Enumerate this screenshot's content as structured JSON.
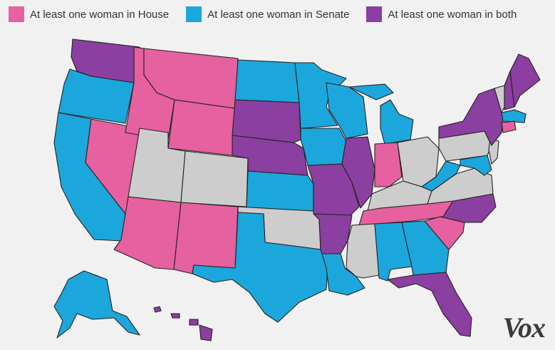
{
  "legend": [
    {
      "label": "At least one woman in House",
      "color": "#e5619f"
    },
    {
      "label": "At least one woman in Senate",
      "color": "#1ba7dc"
    },
    {
      "label": "At least one woman in both",
      "color": "#8b3fa0"
    }
  ],
  "colors": {
    "house": "#e5619f",
    "senate": "#1ba7dc",
    "both": "#8b3fa0",
    "none": "#cdcdcd",
    "border": "#222222",
    "background": "#f1f1f1"
  },
  "map": {
    "description_key": "us-states",
    "states": [
      {
        "id": "WA",
        "category": "both"
      },
      {
        "id": "OR",
        "category": "senate"
      },
      {
        "id": "CA",
        "category": "senate"
      },
      {
        "id": "NV",
        "category": "house"
      },
      {
        "id": "ID",
        "category": "house"
      },
      {
        "id": "MT",
        "category": "house"
      },
      {
        "id": "WY",
        "category": "house"
      },
      {
        "id": "UT",
        "category": "none"
      },
      {
        "id": "CO",
        "category": "none"
      },
      {
        "id": "AZ",
        "category": "house"
      },
      {
        "id": "NM",
        "category": "house"
      },
      {
        "id": "ND",
        "category": "senate"
      },
      {
        "id": "SD",
        "category": "both"
      },
      {
        "id": "NE",
        "category": "both"
      },
      {
        "id": "KS",
        "category": "senate"
      },
      {
        "id": "OK",
        "category": "none"
      },
      {
        "id": "TX",
        "category": "senate"
      },
      {
        "id": "MN",
        "category": "senate"
      },
      {
        "id": "IA",
        "category": "senate"
      },
      {
        "id": "MO",
        "category": "both"
      },
      {
        "id": "AR",
        "category": "both"
      },
      {
        "id": "LA",
        "category": "senate"
      },
      {
        "id": "WI",
        "category": "senate"
      },
      {
        "id": "IL",
        "category": "both"
      },
      {
        "id": "MI",
        "category": "senate"
      },
      {
        "id": "IN",
        "category": "house"
      },
      {
        "id": "OH",
        "category": "none"
      },
      {
        "id": "KY",
        "category": "none"
      },
      {
        "id": "TN",
        "category": "house"
      },
      {
        "id": "MS",
        "category": "none"
      },
      {
        "id": "AL",
        "category": "senate"
      },
      {
        "id": "GA",
        "category": "senate"
      },
      {
        "id": "FL",
        "category": "both"
      },
      {
        "id": "SC",
        "category": "house"
      },
      {
        "id": "NC",
        "category": "both"
      },
      {
        "id": "VA",
        "category": "none"
      },
      {
        "id": "WV",
        "category": "senate"
      },
      {
        "id": "PA",
        "category": "none"
      },
      {
        "id": "NY",
        "category": "both"
      },
      {
        "id": "VT",
        "category": "none"
      },
      {
        "id": "NH",
        "category": "both"
      },
      {
        "id": "ME",
        "category": "both"
      },
      {
        "id": "MA",
        "category": "senate"
      },
      {
        "id": "CT",
        "category": "house"
      },
      {
        "id": "NJ",
        "category": "none"
      },
      {
        "id": "MD",
        "category": "senate"
      },
      {
        "id": "AK",
        "category": "senate"
      },
      {
        "id": "HI",
        "category": "both"
      }
    ]
  },
  "brand": {
    "logo": "Vox"
  }
}
